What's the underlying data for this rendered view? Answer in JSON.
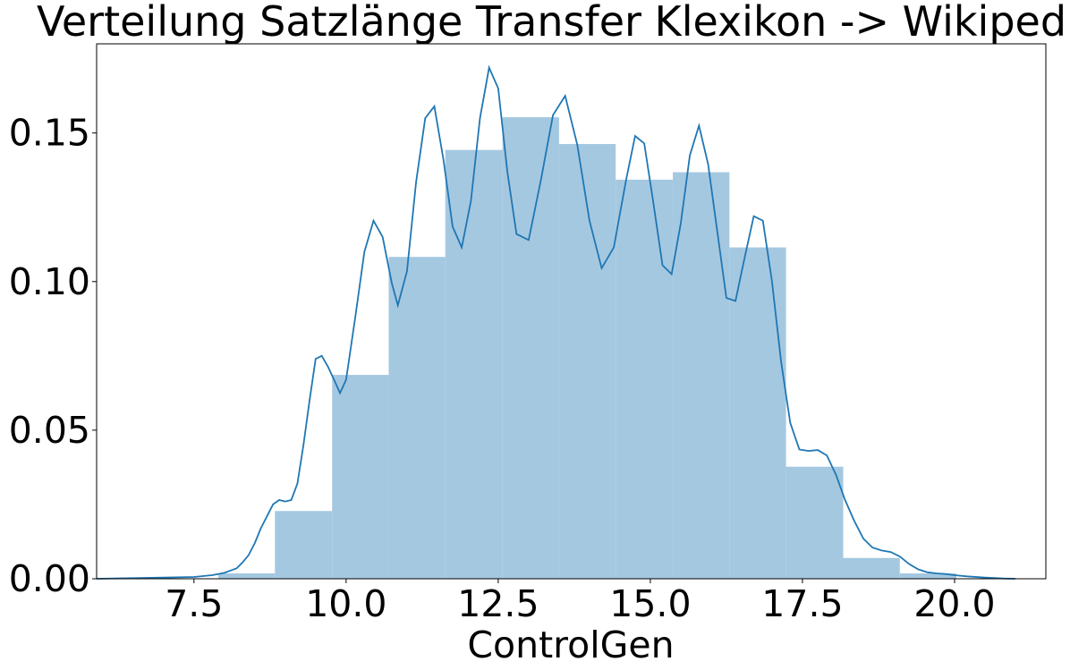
{
  "chart_data": {
    "type": "bar",
    "title": "Verteilung Satzlänge Transfer Klexikon -> Wikipedia",
    "xlabel": "ControlGen",
    "ylabel": "",
    "xlim": [
      5.9,
      21.5
    ],
    "ylim": [
      0,
      0.18
    ],
    "grid": false,
    "legend": "none",
    "x_ticks": [
      {
        "value": 7.5,
        "label": "7.5"
      },
      {
        "value": 10.0,
        "label": "10.0"
      },
      {
        "value": 12.5,
        "label": "12.5"
      },
      {
        "value": 15.0,
        "label": "15.0"
      },
      {
        "value": 17.5,
        "label": "17.5"
      },
      {
        "value": 20.0,
        "label": "20.0"
      }
    ],
    "y_ticks": [
      {
        "value": 0.0,
        "label": "0.00"
      },
      {
        "value": 0.05,
        "label": "0.05"
      },
      {
        "value": 0.1,
        "label": "0.10"
      },
      {
        "value": 0.15,
        "label": "0.15"
      }
    ],
    "colors": {
      "hist_fill": "#a5c8e1",
      "kde_line": "#1f77b4"
    },
    "series": [
      {
        "type": "histogram",
        "bins": [
          {
            "x0": 7.9,
            "x1": 8.83,
            "value": 0.0018
          },
          {
            "x0": 8.83,
            "x1": 9.77,
            "value": 0.0228
          },
          {
            "x0": 9.77,
            "x1": 10.7,
            "value": 0.0686
          },
          {
            "x0": 10.7,
            "x1": 11.63,
            "value": 0.1083
          },
          {
            "x0": 11.63,
            "x1": 12.57,
            "value": 0.1443
          },
          {
            "x0": 12.57,
            "x1": 13.5,
            "value": 0.1553
          },
          {
            "x0": 13.5,
            "x1": 14.43,
            "value": 0.1463
          },
          {
            "x0": 14.43,
            "x1": 15.37,
            "value": 0.1343
          },
          {
            "x0": 15.37,
            "x1": 16.3,
            "value": 0.1368
          },
          {
            "x0": 16.3,
            "x1": 17.23,
            "value": 0.1115
          },
          {
            "x0": 17.23,
            "x1": 18.17,
            "value": 0.0377
          },
          {
            "x0": 18.17,
            "x1": 19.1,
            "value": 0.007
          },
          {
            "x0": 19.1,
            "x1": 20.03,
            "value": 0.0018
          }
        ]
      },
      {
        "type": "line",
        "x": [
          5.9,
          6.5,
          7.0,
          7.5,
          7.8,
          8.0,
          8.2,
          8.3,
          8.4,
          8.5,
          8.6,
          8.7,
          8.8,
          8.9,
          9.0,
          9.1,
          9.2,
          9.3,
          9.4,
          9.5,
          9.6,
          9.7,
          9.8,
          9.9,
          10.0,
          10.15,
          10.3,
          10.45,
          10.6,
          10.75,
          10.85,
          11.0,
          11.15,
          11.3,
          11.45,
          11.6,
          11.75,
          11.9,
          12.05,
          12.2,
          12.35,
          12.5,
          12.65,
          12.8,
          13.0,
          13.2,
          13.4,
          13.6,
          13.8,
          14.0,
          14.2,
          14.4,
          14.6,
          14.75,
          14.9,
          15.05,
          15.2,
          15.35,
          15.5,
          15.65,
          15.8,
          15.95,
          16.1,
          16.25,
          16.4,
          16.55,
          16.7,
          16.85,
          17.0,
          17.15,
          17.3,
          17.45,
          17.6,
          17.75,
          17.9,
          18.05,
          18.2,
          18.35,
          18.5,
          18.65,
          18.8,
          18.95,
          19.1,
          19.25,
          19.4,
          19.55,
          19.7,
          19.85,
          20.0,
          20.2,
          20.5,
          20.8,
          21.0
        ],
        "y": [
          0.0,
          0.0002,
          0.0004,
          0.0006,
          0.0012,
          0.002,
          0.0035,
          0.0055,
          0.008,
          0.012,
          0.017,
          0.021,
          0.025,
          0.0265,
          0.026,
          0.0265,
          0.032,
          0.045,
          0.06,
          0.074,
          0.075,
          0.0715,
          0.067,
          0.0625,
          0.067,
          0.088,
          0.11,
          0.1205,
          0.115,
          0.0995,
          0.092,
          0.1035,
          0.1335,
          0.155,
          0.159,
          0.141,
          0.1185,
          0.1115,
          0.127,
          0.155,
          0.172,
          0.165,
          0.137,
          0.116,
          0.114,
          0.134,
          0.156,
          0.1625,
          0.146,
          0.1205,
          0.1045,
          0.1115,
          0.134,
          0.149,
          0.1465,
          0.1265,
          0.1055,
          0.1025,
          0.1195,
          0.1425,
          0.1525,
          0.1395,
          0.117,
          0.0945,
          0.0935,
          0.108,
          0.122,
          0.1205,
          0.1,
          0.073,
          0.0525,
          0.0435,
          0.043,
          0.0433,
          0.0415,
          0.035,
          0.0265,
          0.0195,
          0.0135,
          0.0105,
          0.0095,
          0.009,
          0.0075,
          0.005,
          0.0032,
          0.0022,
          0.0018,
          0.0016,
          0.0012,
          0.0008,
          0.0004,
          0.0001,
          0.0
        ]
      }
    ]
  }
}
